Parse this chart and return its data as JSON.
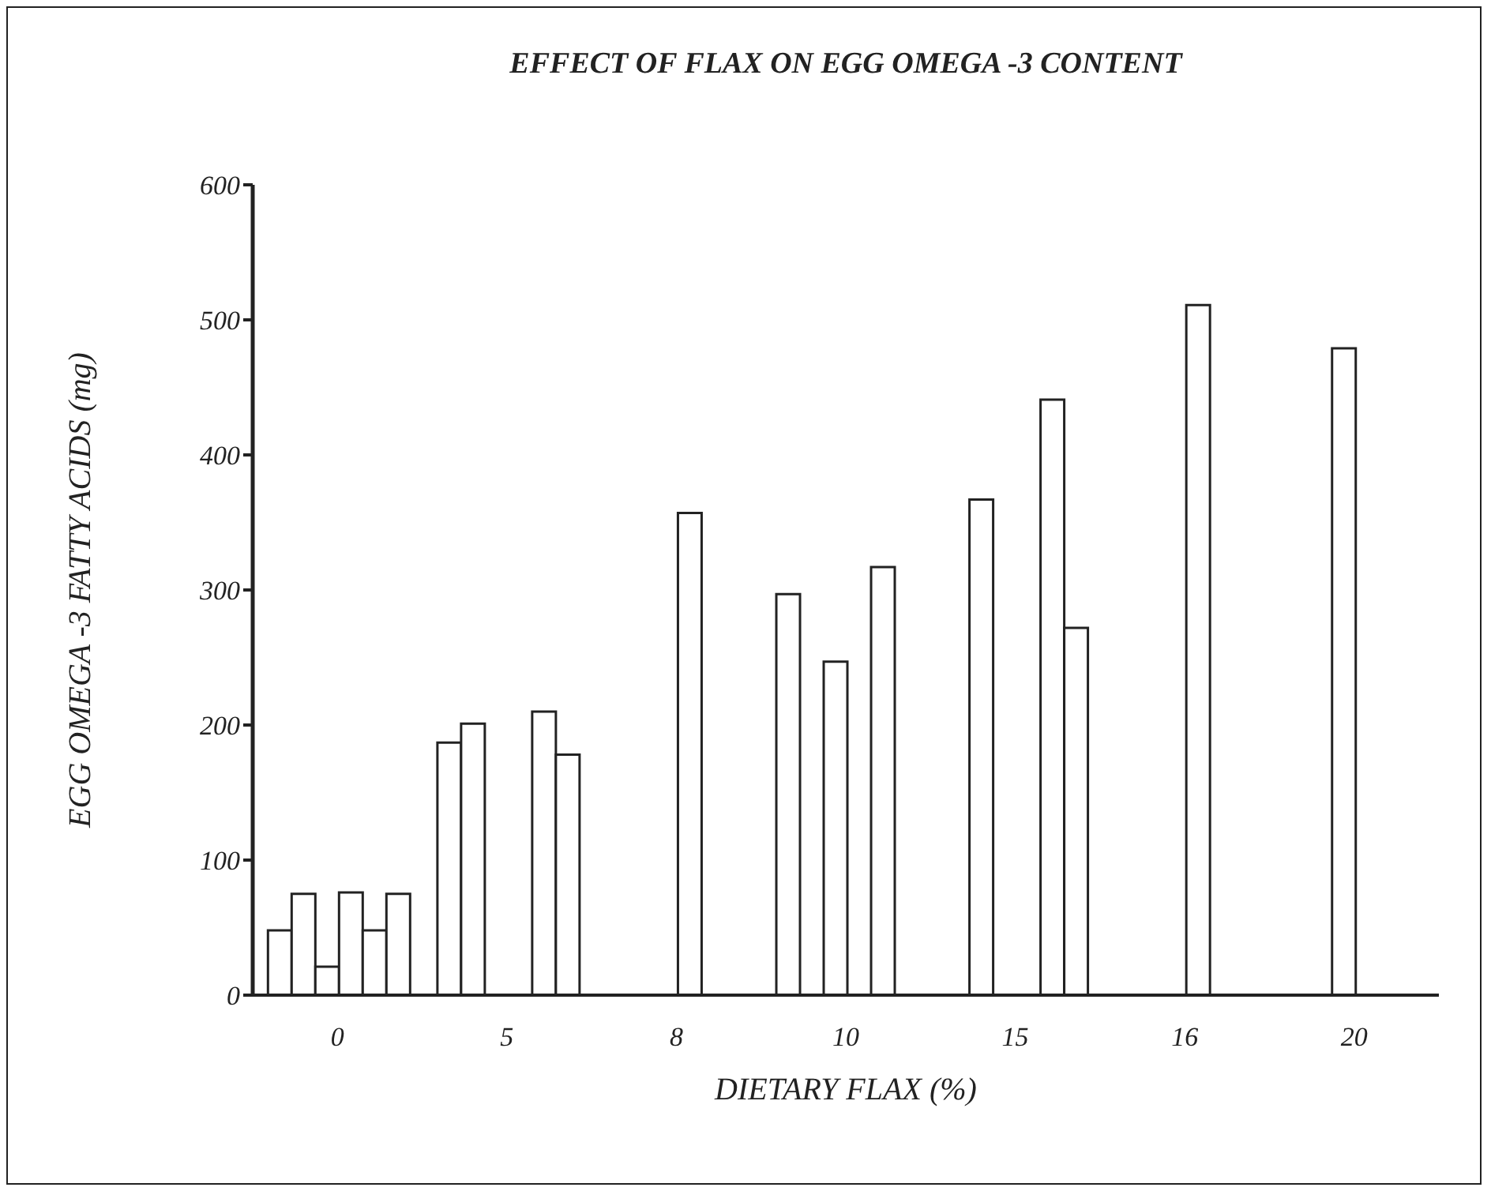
{
  "chart_data": {
    "type": "bar",
    "title": "EFFECT OF FLAX ON EGG OMEGA -3 CONTENT",
    "xlabel": "DIETARY FLAX (%)",
    "ylabel": "EGG OMEGA -3 FATTY ACIDS (mg)",
    "categories": [
      "0",
      "5",
      "8",
      "10",
      "15",
      "16",
      "20"
    ],
    "series": [
      {
        "color": "#ffffff",
        "values": [
          48,
          187,
          null,
          297,
          null,
          null,
          null
        ]
      },
      {
        "color": "#ffffff",
        "values": [
          75,
          201,
          null,
          null,
          367,
          null,
          null
        ]
      },
      {
        "color": "#ffffff",
        "values": [
          21,
          null,
          null,
          247,
          null,
          null,
          479
        ]
      },
      {
        "color": "#ffffff",
        "values": [
          76,
          null,
          357,
          null,
          null,
          511,
          null
        ]
      },
      {
        "color": "#ffffff",
        "values": [
          48,
          210,
          null,
          317,
          441,
          null,
          null
        ]
      },
      {
        "color": "#ffffff",
        "values": [
          75,
          178,
          null,
          null,
          272,
          null,
          null
        ]
      }
    ],
    "ylim": [
      0,
      600
    ],
    "yticks": [
      0,
      100,
      200,
      300,
      400,
      500,
      600
    ],
    "grid": false,
    "legend": false
  }
}
